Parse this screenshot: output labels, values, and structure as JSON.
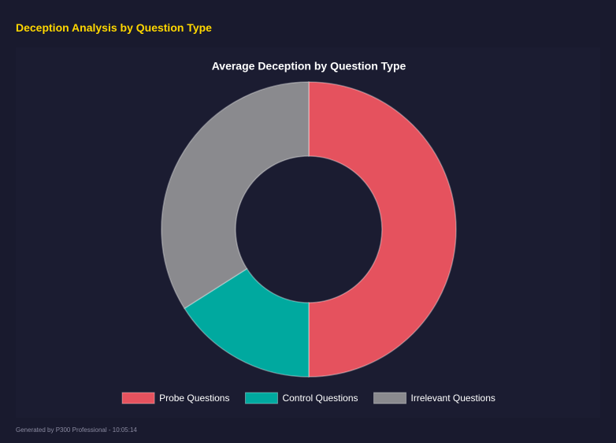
{
  "header": {
    "title": "Deception Analysis by Question Type"
  },
  "chart_data": {
    "type": "doughnut",
    "title": "Average Deception by Question Type",
    "categories": [
      "Probe Questions",
      "Control Questions",
      "Irrelevant Questions"
    ],
    "values": [
      50,
      16,
      34
    ],
    "colors": [
      "#e5525e",
      "#00a99f",
      "#8a8a8e"
    ],
    "legend": "bottom"
  },
  "footer": {
    "text": "Generated by P300 Professional - 10:05:14"
  }
}
